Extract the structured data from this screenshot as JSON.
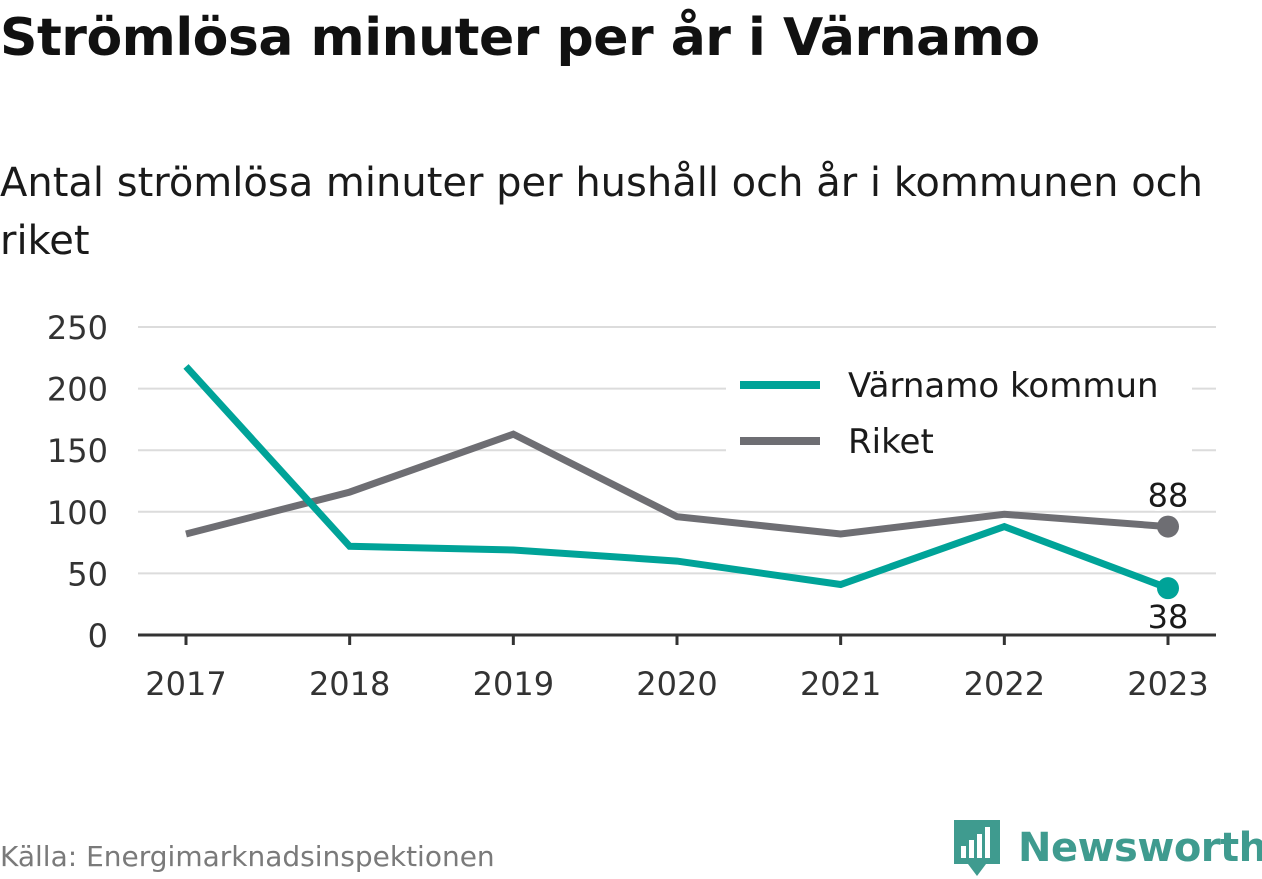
{
  "title": "Strömlösa minuter per år i Värnamo",
  "subtitle": "Antal strömlösa minuter per hushåll och år i kommunen och riket",
  "source": "Källa: Energimarknadsinspektionen",
  "brand": {
    "name": "Newsworthy",
    "logo_icon": "newsworthy-logo-icon",
    "color": "#3f9b8f"
  },
  "chart_data": {
    "type": "line",
    "x": [
      "2017",
      "2018",
      "2019",
      "2020",
      "2021",
      "2022",
      "2023"
    ],
    "ylim": [
      0,
      250
    ],
    "yticks": [
      0,
      50,
      100,
      150,
      200,
      250
    ],
    "grid": true,
    "legend_position": "top-right",
    "series": [
      {
        "name": "Värnamo kommun",
        "color": "#00a398",
        "values": [
          218,
          72,
          69,
          60,
          41,
          88,
          38
        ],
        "end_label": "38",
        "end_label_position": "below"
      },
      {
        "name": "Riket",
        "color": "#6e6e73",
        "values": [
          82,
          116,
          163,
          96,
          82,
          98,
          88
        ],
        "end_label": "88",
        "end_label_position": "above"
      }
    ]
  }
}
